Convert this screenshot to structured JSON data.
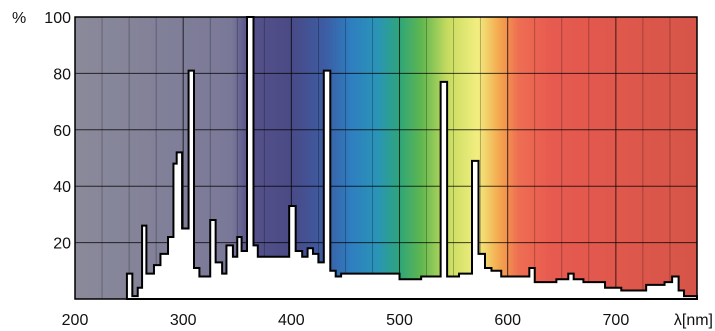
{
  "chart_data": {
    "type": "area",
    "title": "",
    "xlabel": "λ[nm]",
    "ylabel": "%",
    "xlim": [
      200,
      775
    ],
    "ylim": [
      0,
      100
    ],
    "grid": true,
    "x_ticks": [
      200,
      300,
      400,
      500,
      600,
      700
    ],
    "y_ticks": [
      20,
      40,
      60,
      80,
      100
    ],
    "background_spectrum": [
      {
        "x": 200,
        "color": "#8a8a9a"
      },
      {
        "x": 345,
        "color": "#7a7898"
      },
      {
        "x": 360,
        "color": "#56528a"
      },
      {
        "x": 400,
        "color": "#4a4a86"
      },
      {
        "x": 430,
        "color": "#3d5ba2"
      },
      {
        "x": 455,
        "color": "#2e7ec0"
      },
      {
        "x": 480,
        "color": "#2a95b6"
      },
      {
        "x": 500,
        "color": "#2fa57a"
      },
      {
        "x": 520,
        "color": "#5fb650"
      },
      {
        "x": 545,
        "color": "#c8dc60"
      },
      {
        "x": 572,
        "color": "#f2ee80"
      },
      {
        "x": 592,
        "color": "#f4a84e"
      },
      {
        "x": 610,
        "color": "#ee6e52"
      },
      {
        "x": 640,
        "color": "#e75a50"
      },
      {
        "x": 775,
        "color": "#d65548"
      }
    ],
    "series": [
      {
        "fill": "#ffffff",
        "stroke": "#000000",
        "points": [
          [
            248,
            0
          ],
          [
            248,
            9
          ],
          [
            253,
            9
          ],
          [
            253,
            1
          ],
          [
            258,
            1
          ],
          [
            258,
            4
          ],
          [
            262,
            4
          ],
          [
            262,
            26
          ],
          [
            266,
            26
          ],
          [
            266,
            9
          ],
          [
            273,
            9
          ],
          [
            273,
            12
          ],
          [
            279,
            12
          ],
          [
            279,
            16
          ],
          [
            286,
            16
          ],
          [
            286,
            22
          ],
          [
            291,
            22
          ],
          [
            291,
            48
          ],
          [
            294,
            48
          ],
          [
            294,
            52
          ],
          [
            299,
            52
          ],
          [
            299,
            25
          ],
          [
            305,
            25
          ],
          [
            305,
            81
          ],
          [
            310,
            81
          ],
          [
            310,
            11
          ],
          [
            315,
            11
          ],
          [
            315,
            8
          ],
          [
            325,
            8
          ],
          [
            325,
            28
          ],
          [
            330,
            28
          ],
          [
            330,
            13
          ],
          [
            336,
            13
          ],
          [
            336,
            9
          ],
          [
            340,
            9
          ],
          [
            340,
            19
          ],
          [
            346,
            19
          ],
          [
            346,
            15
          ],
          [
            350,
            15
          ],
          [
            350,
            22
          ],
          [
            354,
            22
          ],
          [
            354,
            17
          ],
          [
            359,
            17
          ],
          [
            359,
            100
          ],
          [
            365,
            100
          ],
          [
            365,
            19
          ],
          [
            369,
            19
          ],
          [
            369,
            15
          ],
          [
            398,
            15
          ],
          [
            398,
            33
          ],
          [
            404,
            33
          ],
          [
            404,
            17
          ],
          [
            410,
            17
          ],
          [
            410,
            15
          ],
          [
            415,
            15
          ],
          [
            415,
            18
          ],
          [
            420,
            18
          ],
          [
            420,
            16
          ],
          [
            425,
            16
          ],
          [
            425,
            13
          ],
          [
            430,
            13
          ],
          [
            430,
            81
          ],
          [
            436,
            81
          ],
          [
            436,
            10
          ],
          [
            441,
            10
          ],
          [
            441,
            8
          ],
          [
            446,
            8
          ],
          [
            446,
            9
          ],
          [
            500,
            9
          ],
          [
            500,
            7
          ],
          [
            520,
            7
          ],
          [
            520,
            8
          ],
          [
            538,
            8
          ],
          [
            538,
            77
          ],
          [
            544,
            77
          ],
          [
            544,
            8
          ],
          [
            555,
            8
          ],
          [
            555,
            9
          ],
          [
            567,
            9
          ],
          [
            567,
            49
          ],
          [
            573,
            49
          ],
          [
            573,
            16
          ],
          [
            579,
            16
          ],
          [
            579,
            11
          ],
          [
            585,
            11
          ],
          [
            585,
            10
          ],
          [
            594,
            10
          ],
          [
            594,
            8
          ],
          [
            620,
            8
          ],
          [
            620,
            11
          ],
          [
            625,
            11
          ],
          [
            625,
            6
          ],
          [
            645,
            6
          ],
          [
            645,
            7
          ],
          [
            656,
            7
          ],
          [
            656,
            9
          ],
          [
            661,
            9
          ],
          [
            661,
            7
          ],
          [
            670,
            7
          ],
          [
            670,
            6
          ],
          [
            690,
            6
          ],
          [
            690,
            4
          ],
          [
            705,
            4
          ],
          [
            705,
            3
          ],
          [
            728,
            3
          ],
          [
            728,
            5
          ],
          [
            745,
            5
          ],
          [
            745,
            6
          ],
          [
            752,
            6
          ],
          [
            752,
            8
          ],
          [
            758,
            8
          ],
          [
            758,
            3
          ],
          [
            763,
            3
          ],
          [
            763,
            1
          ],
          [
            775,
            1
          ],
          [
            775,
            0
          ]
        ]
      }
    ]
  }
}
